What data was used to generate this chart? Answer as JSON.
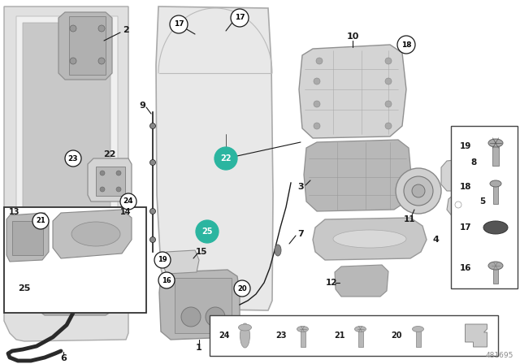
{
  "bg_color": "#ffffff",
  "part_number": "481695",
  "teal_color": "#2BB5A0",
  "line_color": "#1a1a1a",
  "gray_light": "#d4d4d4",
  "gray_mid": "#b8b8b8",
  "gray_dark": "#909090",
  "fig_w": 6.4,
  "fig_h": 4.48,
  "dpi": 100
}
